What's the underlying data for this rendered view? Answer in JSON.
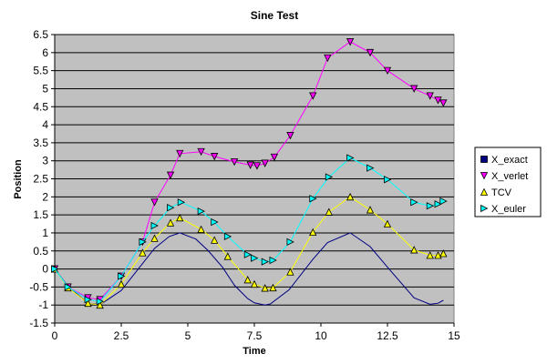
{
  "chart_data": {
    "type": "line",
    "title": "Sine Test",
    "xlabel": "Time",
    "ylabel": "Position",
    "xlim": [
      0,
      15
    ],
    "ylim": [
      -1.5,
      6.5
    ],
    "x_ticks": [
      0,
      2.5,
      5,
      7.5,
      10,
      12.5,
      15
    ],
    "x_tick_labels": [
      "0",
      "2.5",
      "5",
      "7.5",
      "10",
      "12.5",
      "15"
    ],
    "y_ticks": [
      -1.5,
      -1,
      -0.5,
      0,
      0.5,
      1,
      1.5,
      2,
      2.5,
      3,
      3.5,
      4,
      4.5,
      5,
      5.5,
      6,
      6.5
    ],
    "y_tick_labels": [
      "-1.5",
      "-1",
      "-0.5",
      "0",
      "0.5",
      "1",
      "1.5",
      "2",
      "2.5",
      "3",
      "3.5",
      "4",
      "4.5",
      "5",
      "5.5",
      "6",
      "6.5"
    ],
    "grid": true,
    "plot_background": "#c0c0c0",
    "legend_position": "right",
    "series": [
      {
        "name": "X_exact",
        "color": "#000080",
        "marker": "none",
        "x": [
          0,
          0.5,
          1.25,
          1.7,
          2.5,
          3.3,
          3.75,
          4.3,
          4.7,
          5.3,
          5.75,
          6.3,
          6.75,
          7.25,
          7.5,
          7.9,
          8.1,
          8.8,
          9.7,
          10.25,
          11.1,
          11.85,
          12.5,
          13.5,
          14.1,
          14.4,
          14.6
        ],
        "y": [
          0,
          -0.48,
          -0.95,
          -0.99,
          -0.6,
          0.15,
          0.57,
          0.9,
          1.0,
          0.83,
          0.52,
          0.05,
          -0.45,
          -0.82,
          -0.94,
          -1.0,
          -0.97,
          -0.58,
          0.27,
          0.73,
          1.0,
          0.62,
          0.05,
          -0.8,
          -0.98,
          -0.95,
          -0.87
        ]
      },
      {
        "name": "X_verlet",
        "color": "#ff00ff",
        "marker": "triangle-down",
        "x": [
          0,
          0.5,
          1.25,
          1.7,
          2.5,
          3.3,
          3.75,
          4.35,
          4.7,
          5.5,
          6.0,
          6.75,
          7.35,
          7.6,
          7.9,
          8.25,
          8.85,
          9.7,
          10.25,
          11.1,
          11.85,
          12.5,
          13.5,
          14.1,
          14.4,
          14.6
        ],
        "y": [
          0,
          -0.5,
          -0.8,
          -0.85,
          -0.2,
          0.75,
          1.85,
          2.6,
          3.2,
          3.25,
          3.12,
          2.97,
          2.88,
          2.86,
          2.93,
          3.1,
          3.7,
          4.8,
          5.85,
          6.3,
          6.0,
          5.5,
          5.0,
          4.8,
          4.68,
          4.6
        ]
      },
      {
        "name": "TCV",
        "color": "#ffff00",
        "marker": "triangle-up",
        "x": [
          0,
          0.5,
          1.25,
          1.7,
          2.5,
          3.3,
          3.75,
          4.35,
          4.7,
          5.5,
          6.0,
          6.5,
          7.25,
          7.5,
          7.9,
          8.2,
          8.85,
          9.7,
          10.3,
          11.1,
          11.85,
          12.5,
          13.5,
          14.1,
          14.4,
          14.6
        ],
        "y": [
          0,
          -0.52,
          -0.95,
          -1.0,
          -0.42,
          0.45,
          0.85,
          1.28,
          1.42,
          1.1,
          0.8,
          0.35,
          -0.3,
          -0.42,
          -0.53,
          -0.52,
          -0.08,
          1.02,
          1.58,
          2.0,
          1.64,
          1.25,
          0.53,
          0.38,
          0.38,
          0.43
        ]
      },
      {
        "name": "X_euler",
        "color": "#00ffff",
        "marker": "triangle-right",
        "x": [
          0,
          0.5,
          1.25,
          1.7,
          2.5,
          3.3,
          3.75,
          4.35,
          4.75,
          5.5,
          6.0,
          6.5,
          7.25,
          7.5,
          7.9,
          8.2,
          8.85,
          9.7,
          10.3,
          11.1,
          11.85,
          12.5,
          13.5,
          14.1,
          14.4,
          14.6
        ],
        "y": [
          0,
          -0.5,
          -0.85,
          -0.9,
          -0.2,
          0.75,
          1.2,
          1.7,
          1.85,
          1.6,
          1.3,
          0.9,
          0.4,
          0.3,
          0.2,
          0.24,
          0.75,
          1.95,
          2.55,
          3.08,
          2.8,
          2.48,
          1.85,
          1.75,
          1.8,
          1.88
        ]
      }
    ]
  }
}
